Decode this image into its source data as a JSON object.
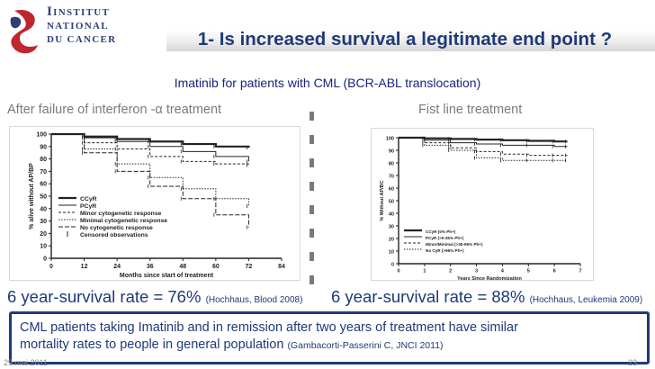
{
  "logo": {
    "line1": "Institut",
    "line2": "National",
    "line3": "du Cancer"
  },
  "header": {
    "title": "1- Is increased survival a legitimate end point ?"
  },
  "subtitle": "Imatinib for patients with CML (BCR-ABL translocation)",
  "left": {
    "heading": "After failure of interferon -α treatment",
    "rate_text": "6 year-survival rate = 76%",
    "citation": "(Hochhaus, Blood 2008)"
  },
  "right": {
    "heading": "Fist line treatment",
    "rate_text": "6 year-survival rate = 88%",
    "citation": "(Hochhaus, Leukemia 2009)"
  },
  "conclusion": {
    "line1": "CML patients taking Imatinib and in remission after two years of treatment have similar",
    "line2": "mortality rates to people in general population",
    "citation": "(Gambacorti-Passerini C, JNCI 2011)"
  },
  "footer": {
    "date": "29 mai 2011",
    "page": "23"
  },
  "colors": {
    "title_blue": "#1e3a78",
    "grey_text": "#7b7b7b"
  },
  "chart_data": [
    {
      "type": "line",
      "title": "",
      "xlabel": "Months since start of treatment",
      "ylabel": "% alive without AP/BP",
      "xlim": [
        0,
        84
      ],
      "ylim": [
        0,
        100
      ],
      "x_ticks": [
        0,
        12,
        24,
        36,
        48,
        60,
        72,
        84
      ],
      "y_ticks": [
        0,
        10,
        20,
        30,
        40,
        50,
        60,
        70,
        80,
        90,
        100
      ],
      "legend": [
        "CCyR",
        "PCyR",
        "Minor cytogenetic response",
        "Minimal cytogenetic response",
        "No cytogenetic response",
        "Censored observations"
      ],
      "series": [
        {
          "name": "CCyR",
          "x": [
            0,
            12,
            24,
            36,
            48,
            60,
            72
          ],
          "values": [
            100,
            98,
            96,
            94,
            92,
            90,
            89
          ]
        },
        {
          "name": "PCyR",
          "x": [
            0,
            12,
            24,
            36,
            48,
            60,
            72
          ],
          "values": [
            100,
            97,
            94,
            90,
            86,
            82,
            78
          ]
        },
        {
          "name": "Minor cytogenetic response",
          "x": [
            0,
            12,
            24,
            36,
            48,
            60,
            72
          ],
          "values": [
            100,
            93,
            88,
            82,
            78,
            76,
            75
          ]
        },
        {
          "name": "Minimal cytogenetic response",
          "x": [
            0,
            12,
            24,
            36,
            48,
            60,
            72
          ],
          "values": [
            100,
            88,
            76,
            65,
            56,
            48,
            42
          ]
        },
        {
          "name": "No cytogenetic response",
          "x": [
            0,
            12,
            24,
            36,
            48,
            60,
            72
          ],
          "values": [
            100,
            85,
            70,
            58,
            48,
            35,
            25
          ]
        }
      ]
    },
    {
      "type": "line",
      "title": "",
      "xlabel": "Years Since Randomization",
      "ylabel": "% Without AP/BC",
      "xlim": [
        0,
        7
      ],
      "ylim": [
        0,
        100
      ],
      "x_ticks": [
        0,
        1,
        2,
        3,
        4,
        5,
        6,
        7
      ],
      "y_ticks": [
        0,
        10,
        20,
        30,
        40,
        50,
        60,
        70,
        80,
        90,
        100
      ],
      "legend": [
        "CCyR (0% Ph+)",
        "PCyR (>0-35% Ph+)",
        "Minor/Minimal (>35-95% Ph+)",
        "No CyR (>95% Ph+)"
      ],
      "series": [
        {
          "name": "CCyR (0% Ph+)",
          "x": [
            0,
            1,
            2,
            3,
            4,
            5,
            6,
            6.5
          ],
          "values": [
            100,
            99.5,
            99,
            98.5,
            98,
            97.5,
            97,
            97
          ]
        },
        {
          "name": "PCyR (>0-35% Ph+)",
          "x": [
            0,
            1,
            2,
            3,
            4,
            5,
            6,
            6.5
          ],
          "values": [
            100,
            98,
            96,
            95,
            94,
            94,
            93,
            93
          ]
        },
        {
          "name": "Minor/Minimal (>35-95% Ph+)",
          "x": [
            0,
            1,
            2,
            3,
            4,
            5,
            6,
            6.5
          ],
          "values": [
            100,
            96,
            92,
            89,
            87,
            86,
            86,
            86
          ]
        },
        {
          "name": "No CyR (>95% Ph+)",
          "x": [
            0,
            1,
            2,
            3,
            4,
            5,
            6,
            6.5
          ],
          "values": [
            100,
            94,
            90,
            84,
            82,
            82,
            82,
            82
          ]
        }
      ]
    }
  ]
}
